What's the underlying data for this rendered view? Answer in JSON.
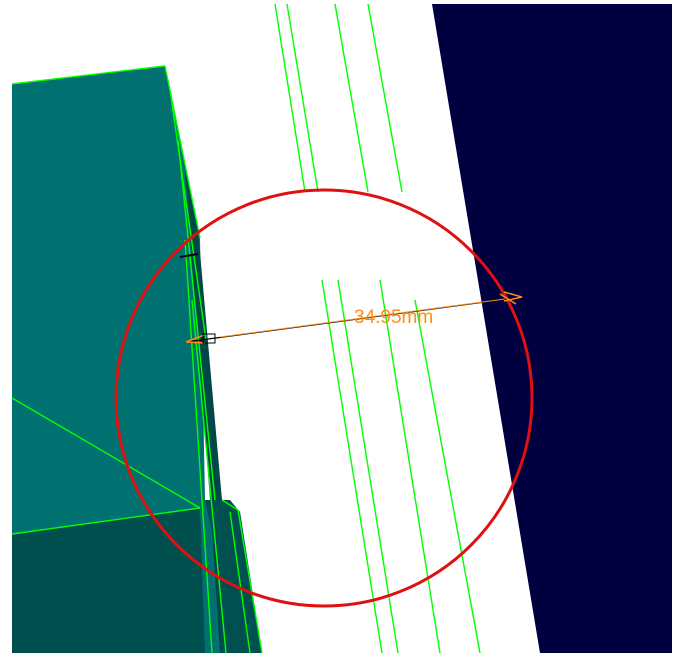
{
  "viewport": {
    "background_color": "#ffffff",
    "colors": {
      "part_teal": "#007070",
      "part_teal_dark": "#005050",
      "part_teal_darker": "#004848",
      "part_navy": "#000040",
      "edge_green": "#00ff00",
      "highlight_circle": "#e01010",
      "dimension_line": "#000000",
      "dimension_text": "#ff8c1a"
    }
  },
  "measurement": {
    "value_label": "34.95mm"
  }
}
